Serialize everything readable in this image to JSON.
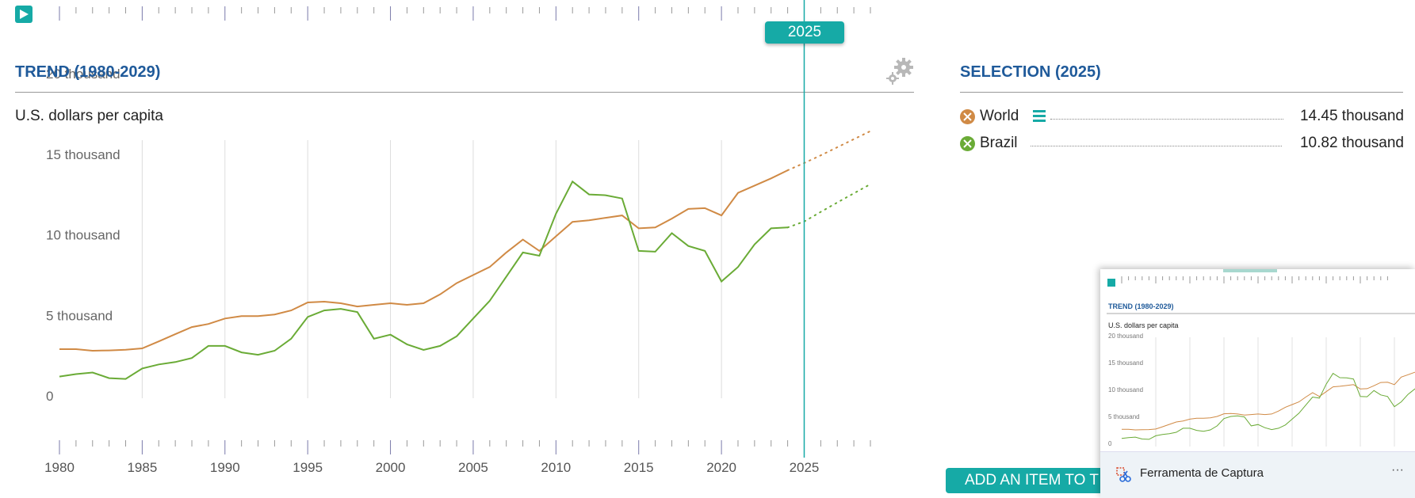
{
  "colors": {
    "accent": "#16aaa6",
    "title": "#1f5a9a",
    "world": "#d08a45",
    "brazil": "#6aab36"
  },
  "timeline": {
    "selected_year": "2025"
  },
  "trend": {
    "title": "TREND (1980-2029)",
    "unit": "U.S. dollars per capita"
  },
  "selection": {
    "title": "SELECTION (2025)",
    "items": [
      {
        "name": "World",
        "value": "14.45 thousand",
        "icon": "x-circle-icon"
      },
      {
        "name": "Brazil",
        "value": "10.82 thousand",
        "icon": "x-circle-icon"
      }
    ]
  },
  "add_button": "ADD AN ITEM TO T",
  "thumbnail": {
    "title": "TREND (1980-2029)",
    "unit": "U.S. dollars per capita",
    "y_ticks": [
      "20 thousand",
      "15 thousand",
      "10 thousand",
      "5 thousand",
      "0"
    ]
  },
  "toast": {
    "app_name": "Ferramenta de Captura",
    "more": "···"
  },
  "icons": {
    "play": "play-icon",
    "settings": "gear-icon",
    "menu": "menu-icon",
    "snipping": "scissors-icon"
  },
  "chart_data": {
    "type": "line",
    "xlim": [
      1980,
      2029
    ],
    "ylim": [
      0,
      20000
    ],
    "y_ticks": [
      {
        "value": 0,
        "label": "0"
      },
      {
        "value": 5000,
        "label": "5 thousand"
      },
      {
        "value": 10000,
        "label": "10 thousand"
      },
      {
        "value": 15000,
        "label": "15 thousand"
      },
      {
        "value": 20000,
        "label": "20 thousand"
      }
    ],
    "x_ticks": [
      1980,
      1985,
      1990,
      1995,
      2000,
      2005,
      2010,
      2015,
      2020,
      2025
    ],
    "grid": true,
    "projection_start": 2024,
    "series": [
      {
        "name": "World",
        "color": "#d08a45",
        "x": [
          1980,
          1981,
          1982,
          1983,
          1984,
          1985,
          1986,
          1987,
          1988,
          1989,
          1990,
          1991,
          1992,
          1993,
          1994,
          1995,
          1996,
          1997,
          1998,
          1999,
          2000,
          2001,
          2002,
          2003,
          2004,
          2005,
          2006,
          2007,
          2008,
          2009,
          2010,
          2011,
          2012,
          2013,
          2014,
          2015,
          2016,
          2017,
          2018,
          2019,
          2020,
          2021,
          2022,
          2023,
          2024,
          2025,
          2026,
          2027,
          2028,
          2029
        ],
        "values": [
          2900,
          2900,
          2800,
          2820,
          2860,
          2950,
          3380,
          3830,
          4270,
          4460,
          4800,
          4950,
          4950,
          5050,
          5300,
          5800,
          5850,
          5750,
          5550,
          5650,
          5750,
          5650,
          5750,
          6300,
          7000,
          7500,
          8000,
          8900,
          9700,
          9000,
          9900,
          10800,
          10900,
          11050,
          11200,
          10400,
          10450,
          11000,
          11600,
          11650,
          11200,
          12600,
          13050,
          13500,
          14000,
          14450,
          14930,
          15430,
          15930,
          16430
        ]
      },
      {
        "name": "Brazil",
        "color": "#6aab36",
        "x": [
          1980,
          1981,
          1982,
          1983,
          1984,
          1985,
          1986,
          1987,
          1988,
          1989,
          1990,
          1991,
          1992,
          1993,
          1994,
          1995,
          1996,
          1997,
          1998,
          1999,
          2000,
          2001,
          2002,
          2003,
          2004,
          2005,
          2006,
          2007,
          2008,
          2009,
          2010,
          2011,
          2012,
          2013,
          2014,
          2015,
          2016,
          2017,
          2018,
          2019,
          2020,
          2021,
          2022,
          2023,
          2024,
          2025,
          2026,
          2027,
          2028,
          2029
        ],
        "values": [
          1200,
          1350,
          1450,
          1100,
          1050,
          1700,
          1950,
          2100,
          2350,
          3100,
          3100,
          2700,
          2550,
          2800,
          3550,
          4900,
          5300,
          5400,
          5200,
          3550,
          3800,
          3200,
          2850,
          3100,
          3700,
          4800,
          5900,
          7400,
          8900,
          8700,
          11300,
          13300,
          12500,
          12450,
          12250,
          9000,
          8950,
          10100,
          9300,
          9000,
          7100,
          8000,
          9400,
          10400,
          10450,
          10820,
          11420,
          12000,
          12570,
          13140
        ]
      }
    ]
  }
}
